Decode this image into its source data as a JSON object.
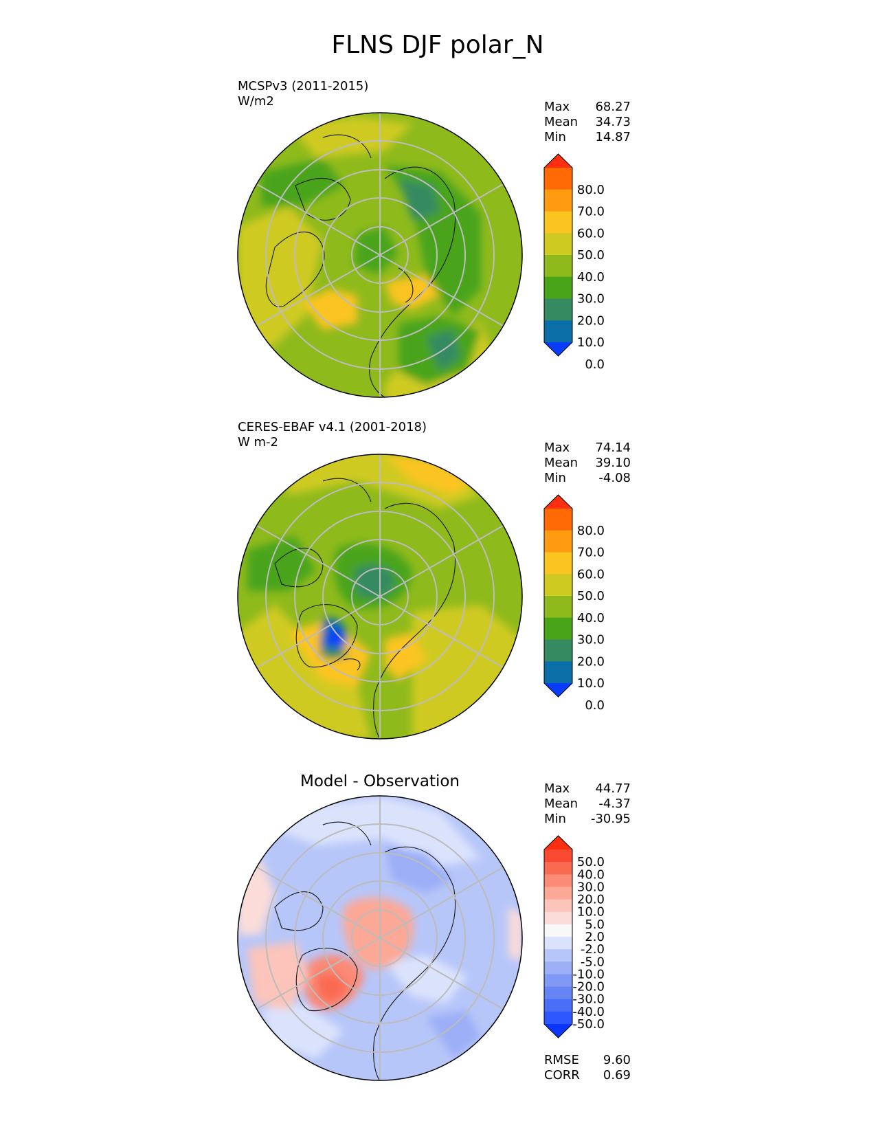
{
  "figure": {
    "title": "FLNS DJF polar_N"
  },
  "chart_data": [
    {
      "type": "heatmap",
      "projection": "north-polar-stereographic",
      "panel_title": "",
      "label": "MCSPv3 (2011-2015)",
      "units": "W/m2",
      "stats": {
        "labels": [
          "Max",
          "Mean",
          "Min"
        ],
        "values": [
          "68.27",
          "34.73",
          "14.87"
        ]
      },
      "colorbar": {
        "ticks": [
          "80.0",
          "70.0",
          "60.0",
          "50.0",
          "40.0",
          "30.0",
          "20.0",
          "10.0",
          "0.0"
        ],
        "levels": [
          0,
          10,
          20,
          30,
          40,
          50,
          60,
          70,
          80
        ],
        "colors": [
          "#0a3cff",
          "#0b6ea6",
          "#358a62",
          "#4aa41a",
          "#8fba1c",
          "#cfca22",
          "#fbc421",
          "#ff9b11",
          "#ff6a07",
          "#fe2f10"
        ],
        "extend": "both"
      },
      "field": {
        "dominant_range": [
          20,
          50
        ],
        "regional_max": "North Atlantic / Europe ~50-60",
        "regional_min": "Siberia ~20-30"
      }
    },
    {
      "type": "heatmap",
      "projection": "north-polar-stereographic",
      "panel_title": "",
      "label": "CERES-EBAF v4.1 (2001-2018)",
      "units": "W m-2",
      "stats": {
        "labels": [
          "Max",
          "Mean",
          "Min"
        ],
        "values": [
          "74.14",
          "39.10",
          "-4.08"
        ]
      },
      "colorbar": {
        "ticks": [
          "80.0",
          "70.0",
          "60.0",
          "50.0",
          "40.0",
          "30.0",
          "20.0",
          "10.0",
          "0.0"
        ],
        "levels": [
          0,
          10,
          20,
          30,
          40,
          50,
          60,
          70,
          80
        ],
        "colors": [
          "#0a3cff",
          "#0b6ea6",
          "#358a62",
          "#4aa41a",
          "#8fba1c",
          "#cfca22",
          "#fbc421",
          "#ff9b11",
          "#ff6a07",
          "#fe2f10"
        ],
        "extend": "both"
      },
      "field": {
        "dominant_range": [
          30,
          60
        ],
        "regional_min": "Greenland ~0-10",
        "regional_max": "North Atlantic ~60-70"
      }
    },
    {
      "type": "heatmap",
      "projection": "north-polar-stereographic",
      "panel_title": "Model - Observation",
      "label": "",
      "units": "",
      "stats": {
        "labels": [
          "Max",
          "Mean",
          "Min"
        ],
        "values": [
          "44.77",
          "-4.37",
          "-30.95"
        ]
      },
      "metrics": {
        "labels": [
          "RMSE",
          "CORR"
        ],
        "values": [
          "9.60",
          "0.69"
        ]
      },
      "colorbar": {
        "ticks": [
          "50.0",
          "40.0",
          "30.0",
          "20.0",
          "10.0",
          "5.0",
          "2.0",
          "-2.0",
          "-5.0",
          "-10.0",
          "-20.0",
          "-30.0",
          "-40.0",
          "-50.0"
        ],
        "levels": [
          -50,
          -40,
          -30,
          -20,
          -10,
          -5,
          -2,
          2,
          5,
          10,
          20,
          30,
          40,
          50
        ],
        "colors": [
          "#0a36ff",
          "#2f57ff",
          "#4a6ef7",
          "#6684f4",
          "#7f99f5",
          "#9caff7",
          "#b7c6f9",
          "#dbe3fc",
          "#f8f8f8",
          "#fbdcd8",
          "#fcc4ba",
          "#fca896",
          "#fb8a76",
          "#fa6a52",
          "#f84a31",
          "#fe2f10"
        ],
        "extend": "both"
      },
      "field": {
        "dominant_range": [
          -20,
          5
        ],
        "regional_max": "Greenland ~20-40",
        "regional_center": "Pole ~10-20"
      }
    }
  ]
}
